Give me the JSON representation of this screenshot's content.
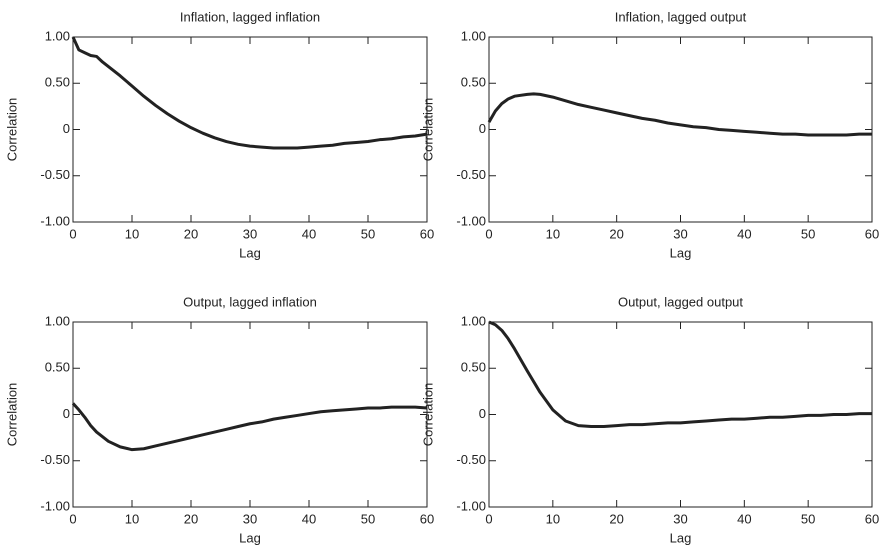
{
  "chart_data": [
    {
      "type": "line",
      "title": "Inflation, lagged inflation",
      "xlabel": "Lag",
      "ylabel": "Correlation",
      "color": "#222222",
      "x": [
        0,
        0.5,
        1,
        2,
        3,
        4,
        5,
        6,
        8,
        10,
        12,
        14,
        16,
        18,
        20,
        22,
        24,
        26,
        28,
        30,
        32,
        34,
        36,
        38,
        40,
        42,
        44,
        46,
        48,
        50,
        52,
        54,
        56,
        58,
        60
      ],
      "values": [
        1.0,
        0.93,
        0.86,
        0.83,
        0.8,
        0.79,
        0.73,
        0.68,
        0.58,
        0.47,
        0.36,
        0.26,
        0.17,
        0.09,
        0.02,
        -0.04,
        -0.09,
        -0.13,
        -0.16,
        -0.18,
        -0.19,
        -0.2,
        -0.2,
        -0.2,
        -0.19,
        -0.18,
        -0.17,
        -0.15,
        -0.14,
        -0.13,
        -0.11,
        -0.1,
        -0.08,
        -0.07,
        -0.05
      ],
      "xlim": [
        0,
        60
      ],
      "xticks": [
        0,
        10,
        20,
        30,
        40,
        50,
        60
      ],
      "ylim": [
        -1,
        1
      ],
      "yticks": [
        {
          "value": -1,
          "label": "-1.00"
        },
        {
          "value": -0.5,
          "label": "-0.50"
        },
        0,
        {
          "value": 0.5,
          "label": "0.50"
        },
        {
          "value": 1,
          "label": "1.00"
        }
      ]
    },
    {
      "type": "line",
      "title": "Inflation, lagged output",
      "xlabel": "Lag",
      "ylabel": "Correlation",
      "color": "#222222",
      "x": [
        0,
        1,
        2,
        3,
        4,
        6,
        7,
        8,
        10,
        12,
        14,
        16,
        18,
        20,
        22,
        24,
        26,
        28,
        30,
        32,
        34,
        36,
        38,
        40,
        42,
        44,
        46,
        48,
        50,
        52,
        54,
        56,
        58,
        60
      ],
      "values": [
        0.08,
        0.2,
        0.28,
        0.33,
        0.36,
        0.38,
        0.385,
        0.38,
        0.35,
        0.31,
        0.27,
        0.24,
        0.21,
        0.18,
        0.15,
        0.12,
        0.1,
        0.07,
        0.05,
        0.03,
        0.02,
        0.0,
        -0.01,
        -0.02,
        -0.03,
        -0.04,
        -0.05,
        -0.05,
        -0.06,
        -0.06,
        -0.06,
        -0.06,
        -0.05,
        -0.05
      ],
      "xlim": [
        0,
        60
      ],
      "xticks": [
        0,
        10,
        20,
        30,
        40,
        50,
        60
      ],
      "ylim": [
        -1,
        1
      ],
      "yticks": [
        {
          "value": -1,
          "label": "-1.00"
        },
        {
          "value": -0.5,
          "label": "-0.50"
        },
        0,
        {
          "value": 0.5,
          "label": "0.50"
        },
        {
          "value": 1,
          "label": "1.00"
        }
      ]
    },
    {
      "type": "line",
      "title": "Output, lagged inflation",
      "xlabel": "Lag",
      "ylabel": "Correlation",
      "color": "#222222",
      "x": [
        0,
        1,
        2,
        3,
        4,
        6,
        8,
        10,
        12,
        14,
        16,
        18,
        20,
        22,
        24,
        26,
        28,
        30,
        32,
        34,
        36,
        38,
        40,
        42,
        44,
        46,
        48,
        50,
        52,
        54,
        56,
        58,
        60
      ],
      "values": [
        0.12,
        0.05,
        -0.03,
        -0.12,
        -0.19,
        -0.29,
        -0.35,
        -0.38,
        -0.37,
        -0.34,
        -0.31,
        -0.28,
        -0.25,
        -0.22,
        -0.19,
        -0.16,
        -0.13,
        -0.1,
        -0.08,
        -0.05,
        -0.03,
        -0.01,
        0.01,
        0.03,
        0.04,
        0.05,
        0.06,
        0.07,
        0.07,
        0.08,
        0.08,
        0.08,
        0.07
      ],
      "xlim": [
        0,
        60
      ],
      "xticks": [
        0,
        10,
        20,
        30,
        40,
        50,
        60
      ],
      "ylim": [
        -1,
        1
      ],
      "yticks": [
        {
          "value": -1,
          "label": "-1.00"
        },
        {
          "value": -0.5,
          "label": "-0.50"
        },
        0,
        {
          "value": 0.5,
          "label": "0.50"
        },
        {
          "value": 1,
          "label": "1.00"
        }
      ]
    },
    {
      "type": "line",
      "title": "Output, lagged output",
      "xlabel": "Lag",
      "ylabel": "Correlation",
      "color": "#222222",
      "x": [
        0,
        1,
        2,
        3,
        4,
        6,
        8,
        10,
        12,
        14,
        16,
        18,
        20,
        22,
        24,
        26,
        28,
        30,
        32,
        34,
        36,
        38,
        40,
        42,
        44,
        46,
        48,
        50,
        52,
        54,
        56,
        58,
        60
      ],
      "values": [
        1.0,
        0.97,
        0.91,
        0.82,
        0.71,
        0.47,
        0.24,
        0.05,
        -0.07,
        -0.12,
        -0.13,
        -0.13,
        -0.12,
        -0.11,
        -0.11,
        -0.1,
        -0.09,
        -0.09,
        -0.08,
        -0.07,
        -0.06,
        -0.05,
        -0.05,
        -0.04,
        -0.03,
        -0.03,
        -0.02,
        -0.01,
        -0.01,
        0.0,
        0.0,
        0.01,
        0.01
      ],
      "xlim": [
        0,
        60
      ],
      "xticks": [
        0,
        10,
        20,
        30,
        40,
        50,
        60
      ],
      "ylim": [
        -1,
        1
      ],
      "yticks": [
        {
          "value": -1,
          "label": "-1.00"
        },
        {
          "value": -0.5,
          "label": "-0.50"
        },
        0,
        {
          "value": 0.5,
          "label": "0.50"
        },
        {
          "value": 1,
          "label": "1.00"
        }
      ]
    }
  ]
}
